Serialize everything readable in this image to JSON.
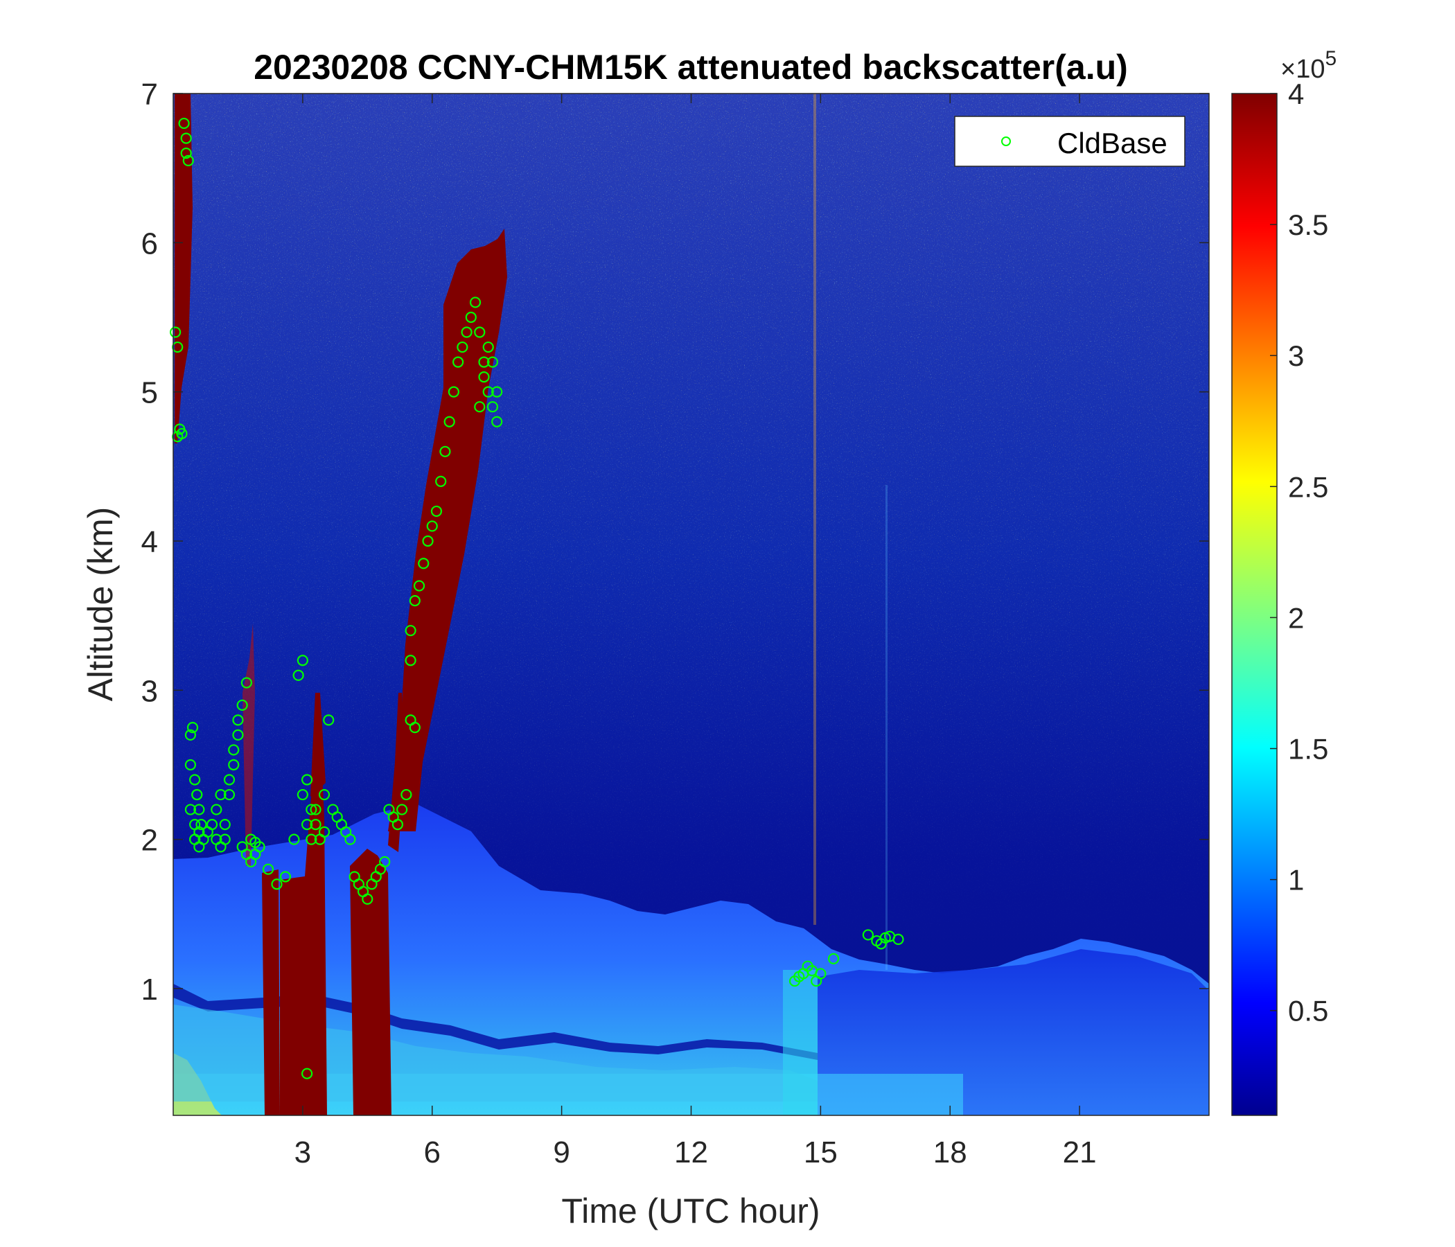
{
  "chart_data": {
    "type": "heatmap",
    "title": "20230208 CCNY-CHM15K attenuated backscatter(a.u)",
    "xlabel": "Time (UTC hour)",
    "ylabel": "Altitude (km)",
    "xlim": [
      0,
      24
    ],
    "ylim": [
      0.15,
      7
    ],
    "xticks": [
      3,
      6,
      9,
      12,
      15,
      18,
      21
    ],
    "yticks": [
      1,
      2,
      3,
      4,
      5,
      6,
      7
    ],
    "colorbar": {
      "colormap": "jet",
      "clim": [
        0.1,
        4
      ],
      "ticks": [
        0.5,
        1,
        1.5,
        2,
        2.5,
        3,
        3.5,
        4
      ],
      "tick_labels": [
        "0.5",
        "1",
        "1.5",
        "2",
        "2.5",
        "3",
        "3.5",
        "4"
      ],
      "exponent_prefix": "×10",
      "exponent": "5"
    },
    "legend": {
      "entries": [
        "CldBase"
      ],
      "placement": "top-right",
      "marker": "circle",
      "color": "#00ff00"
    },
    "series": [
      {
        "name": "CldBase",
        "marker": "o",
        "color": "#00ff00",
        "x": [
          0.05,
          0.1,
          0.15,
          0.1,
          0.2,
          0.25,
          0.3,
          0.3,
          0.35,
          0.4,
          0.45,
          0.4,
          0.5,
          0.55,
          0.4,
          0.5,
          0.6,
          0.5,
          0.55,
          0.6,
          0.65,
          0.5,
          0.6,
          0.7,
          0.8,
          0.9,
          1.0,
          1.1,
          1.2,
          1.3,
          1.4,
          1.5,
          1.0,
          1.1,
          1.2,
          1.3,
          1.4,
          1.5,
          1.6,
          1.7,
          1.8,
          1.9,
          1.6,
          1.7,
          1.8,
          1.9,
          2.0,
          2.2,
          2.4,
          2.6,
          2.8,
          3.0,
          3.1,
          3.2,
          3.3,
          3.4,
          3.5,
          3.6,
          2.9,
          3.0,
          3.1,
          3.2,
          3.3,
          3.5,
          3.7,
          3.8,
          3.9,
          4.0,
          4.1,
          4.2,
          4.3,
          4.4,
          4.5,
          4.6,
          4.7,
          4.8,
          4.9,
          5.0,
          5.1,
          5.2,
          5.3,
          5.4,
          5.5,
          5.6,
          5.5,
          5.5,
          5.6,
          5.7,
          5.8,
          5.9,
          6.0,
          6.1,
          6.2,
          6.3,
          6.4,
          6.5,
          6.6,
          6.7,
          6.8,
          6.9,
          7.0,
          7.1,
          7.2,
          7.3,
          7.4,
          7.5,
          7.3,
          7.4,
          7.5,
          7.2,
          7.1,
          14.4,
          14.5,
          14.6,
          14.7,
          14.8,
          14.9,
          15.0,
          15.3,
          16.1,
          16.3,
          16.4,
          16.5,
          16.6,
          16.8,
          3.1
        ],
        "y": [
          5.4,
          5.3,
          4.75,
          4.7,
          4.72,
          6.8,
          6.7,
          6.6,
          6.55,
          2.7,
          2.75,
          2.5,
          2.4,
          2.3,
          2.2,
          2.1,
          2.05,
          2.0,
          2.3,
          2.2,
          2.1,
          2.0,
          1.95,
          2.0,
          2.05,
          2.1,
          2.2,
          2.3,
          2.0,
          2.4,
          2.6,
          2.8,
          2.0,
          1.95,
          2.1,
          2.3,
          2.5,
          2.7,
          2.9,
          3.05,
          2.0,
          1.98,
          1.95,
          1.9,
          1.85,
          1.9,
          1.95,
          1.8,
          1.7,
          1.75,
          2.0,
          2.3,
          2.4,
          2.2,
          2.1,
          2.0,
          2.3,
          2.8,
          3.1,
          3.2,
          2.1,
          2.0,
          2.2,
          2.05,
          2.2,
          2.15,
          2.1,
          2.05,
          2.0,
          1.75,
          1.7,
          1.65,
          1.6,
          1.7,
          1.75,
          1.8,
          1.85,
          2.2,
          2.15,
          2.1,
          2.2,
          2.3,
          2.8,
          2.75,
          3.2,
          3.4,
          3.6,
          3.7,
          3.85,
          4.0,
          4.1,
          4.2,
          4.4,
          4.6,
          4.8,
          5.0,
          5.2,
          5.3,
          5.4,
          5.5,
          5.6,
          5.4,
          5.2,
          5.0,
          4.9,
          4.8,
          5.3,
          5.2,
          5.0,
          5.1,
          4.9,
          1.05,
          1.08,
          1.1,
          1.15,
          1.12,
          1.05,
          1.1,
          1.2,
          1.36,
          1.32,
          1.3,
          1.34,
          1.35,
          1.33,
          0.43
        ]
      }
    ]
  }
}
